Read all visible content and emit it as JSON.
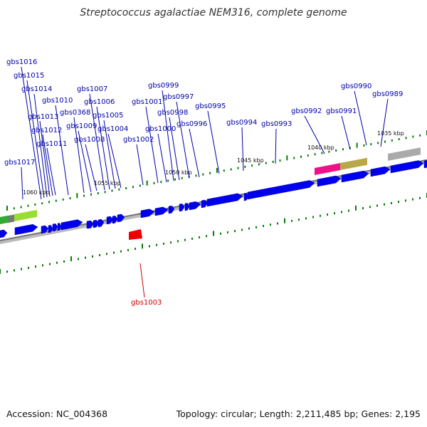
{
  "title": "Streptococcus agalactiae NEM316, complete genome",
  "footer": {
    "accession": "Accession: NC_004368",
    "summary": "Topology: circular; Length: 2,211,485 bp; Genes: 2,195"
  },
  "colors": {
    "gene_forward": "#0000ee",
    "gene_reverse_highlight": "#ee0000",
    "label_forward": "#0000aa",
    "label_reverse": "#cc0000",
    "backbone": "#888888",
    "tick": "#0a7a0a"
  },
  "scale_labels": [
    "1035 kbp",
    "1040 kbp",
    "1045 kbp",
    "1050 kbp",
    "1055 kbp",
    "1060 kbp"
  ],
  "gene_labels": [
    "gbs1016",
    "gbs1015",
    "gbs1014",
    "gbs1013",
    "gbs1012",
    "gbs1011",
    "gbs1017",
    "gbs1010",
    "gbs0368",
    "gbs1009",
    "gbs1008",
    "gbs1007",
    "gbs1006",
    "gbs1005",
    "gbs1004",
    "gbs1002",
    "gbs1001",
    "gbs1000",
    "gbs0999",
    "gbs0998",
    "gbs0997",
    "gbs0996",
    "gbs0995",
    "gbs0994",
    "gbs0993",
    "gbs0992",
    "gbs0991",
    "gbs0990",
    "gbs0989",
    "gbs1003"
  ]
}
